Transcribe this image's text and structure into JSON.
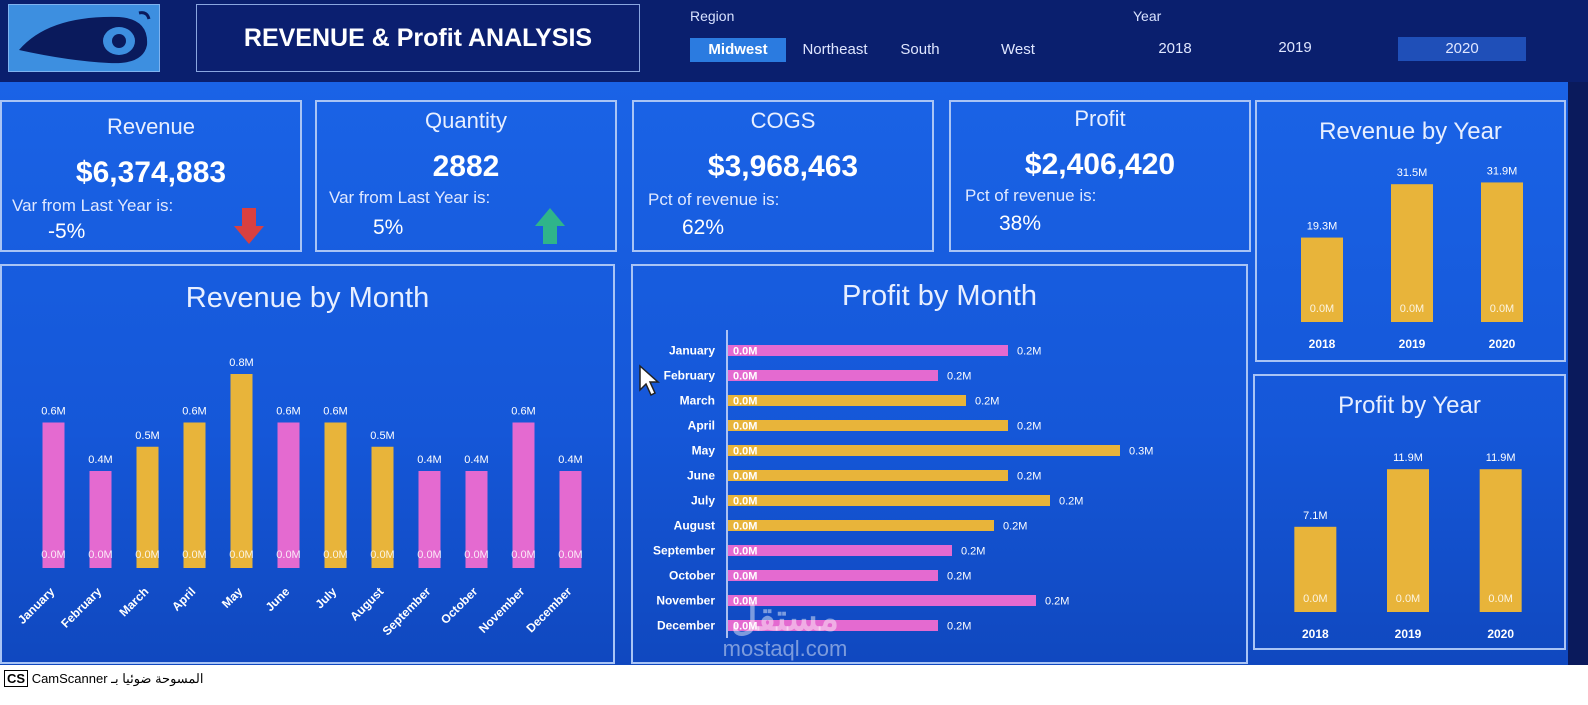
{
  "header": {
    "title": "REVENUE & Profit ANALYSIS",
    "region_label": "Region",
    "regions": [
      "Midwest",
      "Northeast",
      "South",
      "West"
    ],
    "selected_region": "Midwest",
    "year_label": "Year",
    "years": [
      "2018",
      "2019",
      "2020"
    ],
    "selected_year": "2020"
  },
  "kpis": {
    "revenue": {
      "title": "Revenue",
      "value": "$6,374,883",
      "sub": "Var from Last Year is:",
      "pct": "-5%",
      "trend": "down",
      "trend_color": "#d94040"
    },
    "quantity": {
      "title": "Quantity",
      "value": "2882",
      "sub": "Var from Last Year is:",
      "pct": "5%",
      "trend": "up",
      "trend_color": "#2fb58a"
    },
    "cogs": {
      "title": "COGS",
      "value": "$3,968,463",
      "sub": "Pct of revenue is:",
      "pct": "62%"
    },
    "profit": {
      "title": "Profit",
      "value": "$2,406,420",
      "sub": "Pct of revenue is:",
      "pct": "38%"
    }
  },
  "colors": {
    "pink": "#e46ad0",
    "gold": "#e8b43a",
    "panel_border": "#a9c4f5"
  },
  "footer": {
    "scanner_text": "CamScanner المسوحة ضوئيا بـ",
    "watermark_ar": "مستقل",
    "watermark_en": "mostaql.com"
  },
  "chart_data": [
    {
      "type": "bar",
      "title": "Revenue by Month",
      "categories": [
        "January",
        "February",
        "March",
        "April",
        "May",
        "June",
        "July",
        "August",
        "September",
        "October",
        "November",
        "December"
      ],
      "values": [
        0.6,
        0.4,
        0.5,
        0.6,
        0.8,
        0.6,
        0.6,
        0.5,
        0.4,
        0.4,
        0.6,
        0.4
      ],
      "data_labels": [
        "0.6M",
        "0.4M",
        "0.5M",
        "0.6M",
        "0.8M",
        "0.6M",
        "0.6M",
        "0.5M",
        "0.4M",
        "0.4M",
        "0.6M",
        "0.4M"
      ],
      "base_labels": [
        "0.0M",
        "0.0M",
        "0.0M",
        "0.0M",
        "0.0M",
        "0.0M",
        "0.0M",
        "0.0M",
        "0.0M",
        "0.0M",
        "0.0M",
        "0.0M"
      ],
      "bar_colors": [
        "#e46ad0",
        "#e46ad0",
        "#e8b43a",
        "#e8b43a",
        "#e8b43a",
        "#e46ad0",
        "#e8b43a",
        "#e8b43a",
        "#e46ad0",
        "#e46ad0",
        "#e46ad0",
        "#e46ad0"
      ],
      "unit": "M",
      "ylim": [
        0,
        0.8
      ]
    },
    {
      "type": "bar",
      "orientation": "horizontal",
      "title": "Profit by Month",
      "categories": [
        "January",
        "February",
        "March",
        "April",
        "May",
        "June",
        "July",
        "August",
        "September",
        "October",
        "November",
        "December"
      ],
      "values": [
        0.2,
        0.15,
        0.17,
        0.2,
        0.28,
        0.2,
        0.23,
        0.19,
        0.16,
        0.15,
        0.22,
        0.15
      ],
      "data_labels": [
        "0.2M",
        "0.2M",
        "0.2M",
        "0.2M",
        "0.3M",
        "0.2M",
        "0.2M",
        "0.2M",
        "0.2M",
        "0.2M",
        "0.2M",
        "0.2M"
      ],
      "base_labels": [
        "0.0M",
        "0.0M",
        "0.0M",
        "0.0M",
        "0.0M",
        "0.0M",
        "0.0M",
        "0.0M",
        "0.0M",
        "0.0M",
        "0.0M",
        "0.0M"
      ],
      "bar_colors": [
        "#e46ad0",
        "#e46ad0",
        "#e8b43a",
        "#e8b43a",
        "#e8b43a",
        "#e8b43a",
        "#e8b43a",
        "#e8b43a",
        "#e46ad0",
        "#e46ad0",
        "#e46ad0",
        "#e46ad0"
      ],
      "unit": "M",
      "xlim": [
        0,
        0.3
      ]
    },
    {
      "type": "bar",
      "title": "Revenue by Year",
      "categories": [
        "2018",
        "2019",
        "2020"
      ],
      "values": [
        19.3,
        31.5,
        31.9
      ],
      "data_labels": [
        "19.3M",
        "31.5M",
        "31.9M"
      ],
      "base_labels": [
        "0.0M",
        "0.0M",
        "0.0M"
      ],
      "bar_colors": [
        "#e8b43a",
        "#e8b43a",
        "#e8b43a"
      ],
      "unit": "M",
      "ylim": [
        0,
        32
      ]
    },
    {
      "type": "bar",
      "title": "Profit by Year",
      "categories": [
        "2018",
        "2019",
        "2020"
      ],
      "values": [
        7.1,
        11.9,
        11.9
      ],
      "data_labels": [
        "7.1M",
        "11.9M",
        "11.9M"
      ],
      "base_labels": [
        "0.0M",
        "0.0M",
        "0.0M"
      ],
      "bar_colors": [
        "#e8b43a",
        "#e8b43a",
        "#e8b43a"
      ],
      "unit": "M",
      "ylim": [
        0,
        12
      ]
    }
  ]
}
